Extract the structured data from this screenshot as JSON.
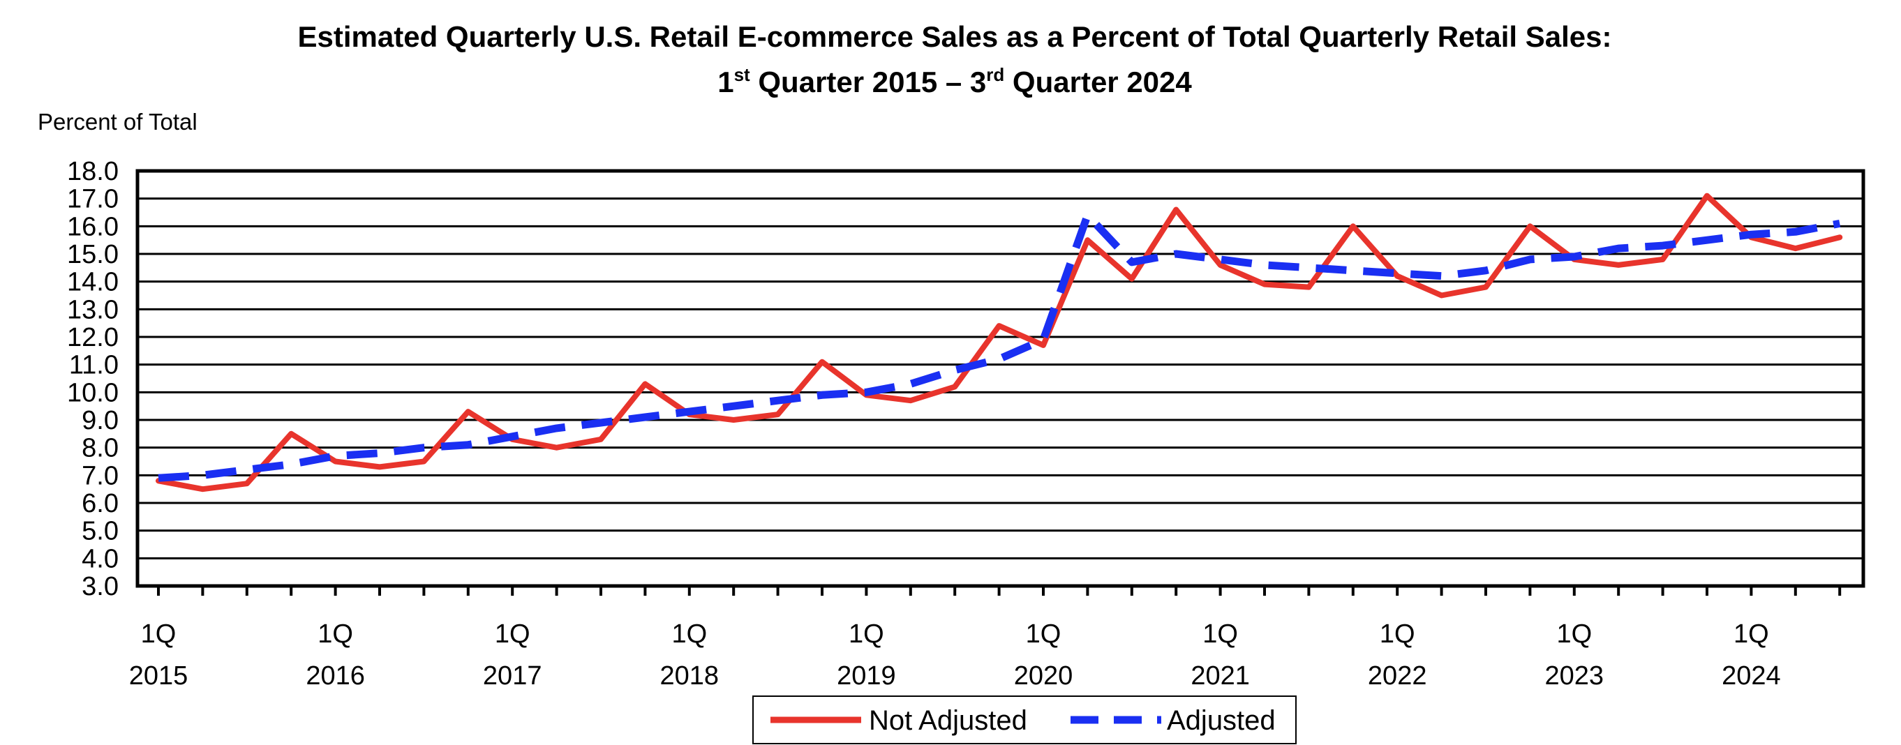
{
  "chart_data": {
    "type": "line",
    "title": {
      "line1": "Estimated Quarterly U.S. Retail E-commerce Sales as a Percent of Total Quarterly Retail Sales:",
      "line2": {
        "start_num": "1",
        "start_sup": "st",
        "middle": " Quarter 2015 – 3",
        "end_sup": "rd",
        "end": " Quarter 2024"
      }
    },
    "ylabel": "Percent of Total",
    "xlabel": "",
    "ylim": [
      3.0,
      18.0
    ],
    "y_ticks": [
      "18.0",
      "17.0",
      "16.0",
      "15.0",
      "14.0",
      "13.0",
      "12.0",
      "11.0",
      "10.0",
      "9.0",
      "8.0",
      "7.0",
      "6.0",
      "5.0",
      "4.0",
      "3.0"
    ],
    "x_tick_labels": [
      {
        "quarter": "1Q",
        "year": "2015"
      },
      {
        "quarter": "1Q",
        "year": "2016"
      },
      {
        "quarter": "1Q",
        "year": "2017"
      },
      {
        "quarter": "1Q",
        "year": "2018"
      },
      {
        "quarter": "1Q",
        "year": "2019"
      },
      {
        "quarter": "1Q",
        "year": "2020"
      },
      {
        "quarter": "1Q",
        "year": "2021"
      },
      {
        "quarter": "1Q",
        "year": "2022"
      },
      {
        "quarter": "1Q",
        "year": "2023"
      },
      {
        "quarter": "1Q",
        "year": "2024"
      }
    ],
    "grid": true,
    "legend": {
      "position": "bottom-center",
      "entries": [
        "Not Adjusted",
        "Adjusted"
      ]
    },
    "series": [
      {
        "name": "Not Adjusted",
        "color": "#E8342C",
        "style": "solid",
        "values": [
          6.8,
          6.5,
          6.7,
          8.5,
          7.5,
          7.3,
          7.5,
          9.3,
          8.3,
          8.0,
          8.3,
          10.3,
          9.2,
          9.0,
          9.2,
          11.1,
          9.9,
          9.7,
          10.2,
          12.4,
          11.7,
          15.5,
          14.1,
          16.6,
          14.6,
          13.9,
          13.8,
          16.0,
          14.2,
          13.5,
          13.8,
          16.0,
          14.8,
          14.6,
          14.8,
          17.1,
          15.6,
          15.2,
          15.6
        ]
      },
      {
        "name": "Adjusted",
        "color": "#1A2FF2",
        "style": "dashed",
        "values": [
          6.9,
          7.0,
          7.2,
          7.4,
          7.7,
          7.8,
          8.0,
          8.1,
          8.4,
          8.7,
          8.9,
          9.1,
          9.3,
          9.5,
          9.7,
          9.9,
          10.0,
          10.3,
          10.8,
          11.2,
          11.9,
          16.4,
          14.7,
          15.0,
          14.8,
          14.6,
          14.5,
          14.4,
          14.3,
          14.2,
          14.4,
          14.8,
          14.9,
          15.2,
          15.3,
          15.5,
          15.7,
          15.8,
          16.1
        ]
      }
    ]
  }
}
